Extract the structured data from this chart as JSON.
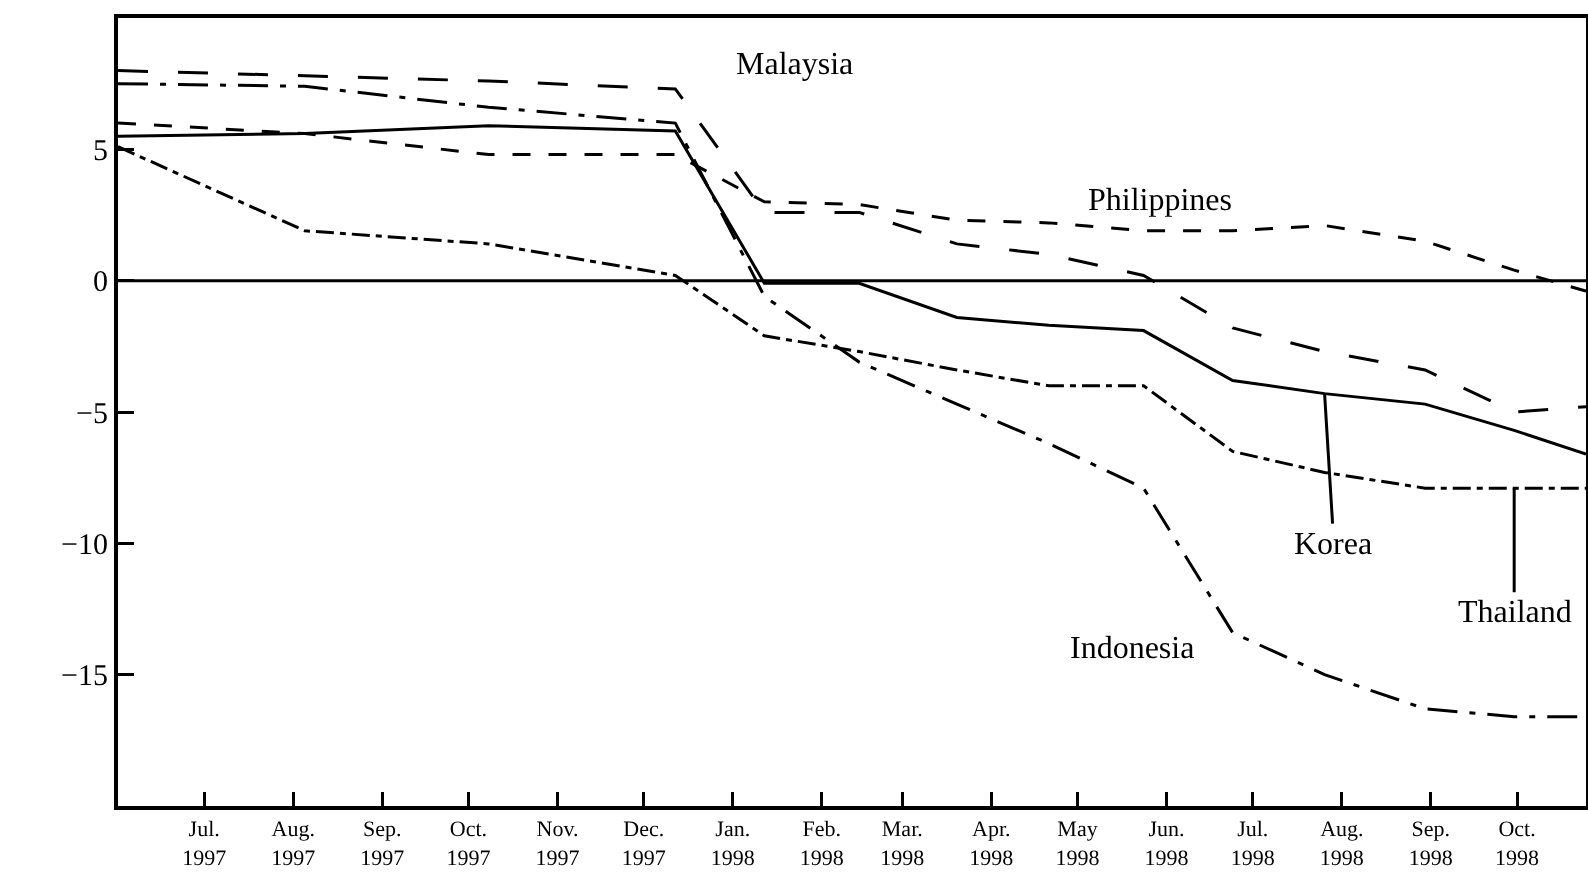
{
  "chart_data": {
    "type": "line",
    "x": [
      "1997-06-01",
      "1997-08-05",
      "1997-10-08",
      "1997-12-12",
      "1998-01-12",
      "1998-02-14",
      "1998-03-20",
      "1998-04-21",
      "1998-05-24",
      "1998-06-24",
      "1998-07-26",
      "1998-08-30",
      "1998-09-30",
      "1998-10-25"
    ],
    "series": [
      {
        "name": "Malaysia",
        "color": "#000000",
        "line_style": "longdash",
        "values": [
          8.0,
          7.8,
          7.6,
          7.3,
          2.6,
          2.6,
          1.4,
          1.0,
          0.2,
          -1.8,
          -2.7,
          -3.4,
          -5.0,
          -4.8
        ]
      },
      {
        "name": "Philippines",
        "color": "#000000",
        "line_style": "dashed",
        "values": [
          6.0,
          5.6,
          4.8,
          4.8,
          3.0,
          2.9,
          2.3,
          2.2,
          1.9,
          1.9,
          2.1,
          1.5,
          0.4,
          -0.4
        ]
      },
      {
        "name": "Korea",
        "color": "#000000",
        "line_style": "solid",
        "values": [
          5.5,
          5.6,
          5.9,
          5.7,
          -0.1,
          -0.1,
          -1.4,
          -1.7,
          -1.9,
          -3.8,
          -4.3,
          -4.7,
          -5.7,
          -6.6
        ]
      },
      {
        "name": "Thailand",
        "color": "#000000",
        "line_style": "dashdot",
        "values": [
          5.1,
          1.9,
          1.4,
          0.2,
          -2.1,
          -2.7,
          -3.4,
          -4.0,
          -4.0,
          -6.5,
          -7.3,
          -7.9,
          -7.9,
          -7.9
        ]
      },
      {
        "name": "Indonesia",
        "color": "#000000",
        "line_style": "longdashdot",
        "values": [
          7.5,
          7.4,
          6.6,
          6.0,
          -0.6,
          -3.1,
          -4.7,
          -6.2,
          -7.9,
          -13.4,
          -15.0,
          -16.3,
          -16.6,
          -16.6
        ]
      }
    ],
    "xlim": [
      "1997-06-01",
      "1998-10-25"
    ],
    "xticks": [
      {
        "value": "1997-07-01",
        "label": "Jul. 1997"
      },
      {
        "value": "1997-08-01",
        "label": "Aug. 1997"
      },
      {
        "value": "1997-09-01",
        "label": "Sep. 1997"
      },
      {
        "value": "1997-10-01",
        "label": "Oct. 1997"
      },
      {
        "value": "1997-11-01",
        "label": "Nov. 1997"
      },
      {
        "value": "1997-12-01",
        "label": "Dec. 1997"
      },
      {
        "value": "1998-01-01",
        "label": "Jan. 1998"
      },
      {
        "value": "1998-02-01",
        "label": "Feb. 1998"
      },
      {
        "value": "1998-03-01",
        "label": "Mar. 1998"
      },
      {
        "value": "1998-04-01",
        "label": "Apr. 1998"
      },
      {
        "value": "1998-05-01",
        "label": "May 1998"
      },
      {
        "value": "1998-06-01",
        "label": "Jun. 1998"
      },
      {
        "value": "1998-07-01",
        "label": "Jul. 1998"
      },
      {
        "value": "1998-08-01",
        "label": "Aug. 1998"
      },
      {
        "value": "1998-09-01",
        "label": "Sep. 1998"
      },
      {
        "value": "1998-10-01",
        "label": "Oct. 1998"
      }
    ],
    "ylim": [
      -20,
      10
    ],
    "yticks": [
      -15,
      -10,
      -5,
      0,
      5
    ],
    "ref_lines": [
      {
        "axis": "y",
        "value": 0,
        "color": "#000000",
        "line_style": "solid"
      }
    ],
    "grid": false,
    "legend": false,
    "marker": "none"
  }
}
